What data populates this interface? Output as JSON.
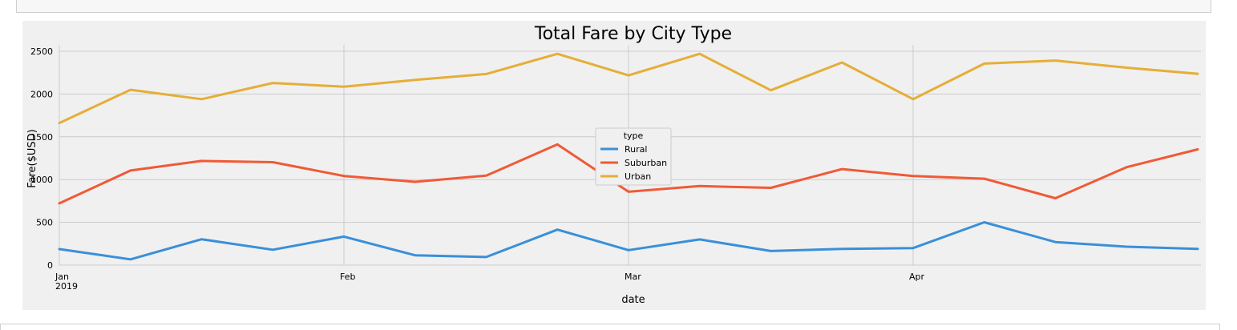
{
  "chart_data": {
    "type": "line",
    "title": "Total Fare by City Type",
    "xlabel": "date",
    "ylabel": "Fare($USD)",
    "ylim": [
      0,
      2600
    ],
    "yticks": [
      "0",
      "500",
      "1000",
      "1500",
      "2000",
      "2500"
    ],
    "xticks": [
      {
        "label": "Jan",
        "sublabel": "2019",
        "date": "2019-01-06"
      },
      {
        "label": "Feb",
        "sublabel": "",
        "date": "2019-02-03"
      },
      {
        "label": "Mar",
        "sublabel": "",
        "date": "2019-03-03"
      },
      {
        "label": "Apr",
        "sublabel": "",
        "date": "2019-03-31"
      }
    ],
    "x": [
      "2019-01-06",
      "2019-01-13",
      "2019-01-20",
      "2019-01-27",
      "2019-02-03",
      "2019-02-10",
      "2019-02-17",
      "2019-02-24",
      "2019-03-03",
      "2019-03-10",
      "2019-03-17",
      "2019-03-24",
      "2019-03-31",
      "2019-04-07",
      "2019-04-14",
      "2019-04-21",
      "2019-04-28"
    ],
    "legend": {
      "title": "type",
      "placement": "center"
    },
    "grid": true,
    "series": [
      {
        "name": "Rural",
        "color": "#3a8fd9",
        "values": [
          187,
          67,
          302,
          180,
          333,
          115,
          95,
          415,
          175,
          301,
          165,
          190,
          199,
          501,
          270,
          215,
          189
        ]
      },
      {
        "name": "Suburban",
        "color": "#f05a36",
        "values": [
          722,
          1106,
          1218,
          1203,
          1042,
          974,
          1046,
          1411,
          858,
          924,
          904,
          1123,
          1042,
          1010,
          782,
          1145,
          1353
        ]
      },
      {
        "name": "Urban",
        "color": "#e5ae38",
        "values": [
          1661,
          2050,
          1940,
          2129,
          2086,
          2165,
          2234,
          2470,
          2218,
          2470,
          2044,
          2369,
          1940,
          2356,
          2391,
          2308,
          2237
        ]
      }
    ]
  }
}
